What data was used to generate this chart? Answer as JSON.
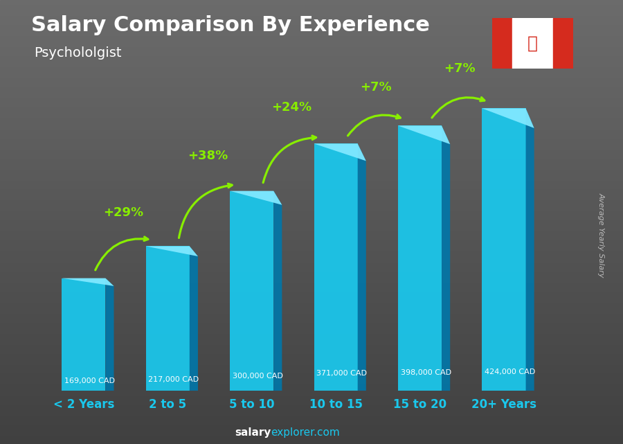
{
  "title": "Salary Comparison By Experience",
  "subtitle": "Psychololgist",
  "categories": [
    "< 2 Years",
    "2 to 5",
    "5 to 10",
    "10 to 15",
    "15 to 20",
    "20+ Years"
  ],
  "values": [
    169000,
    217000,
    300000,
    371000,
    398000,
    424000
  ],
  "salaries": [
    "169,000 CAD",
    "217,000 CAD",
    "300,000 CAD",
    "371,000 CAD",
    "398,000 CAD",
    "424,000 CAD"
  ],
  "pct_changes": [
    "+29%",
    "+38%",
    "+24%",
    "+7%",
    "+7%"
  ],
  "bar_color_front": "#1ac8ed",
  "bar_color_side": "#0077aa",
  "bar_color_top": "#80e8ff",
  "bg_gray_light": "#555555",
  "bg_gray_dark": "#303030",
  "title_color": "#ffffff",
  "subtitle_color": "#ffffff",
  "salary_color": "#cccccc",
  "pct_color": "#88ee00",
  "xlabel_color": "#1ac8ed",
  "watermark_white": "salary",
  "watermark_cyan": "explorer.com",
  "ylabel": "Average Yearly Salary",
  "ylim_max": 480000,
  "bar_bottom": 0,
  "figsize": [
    9.0,
    6.41
  ]
}
